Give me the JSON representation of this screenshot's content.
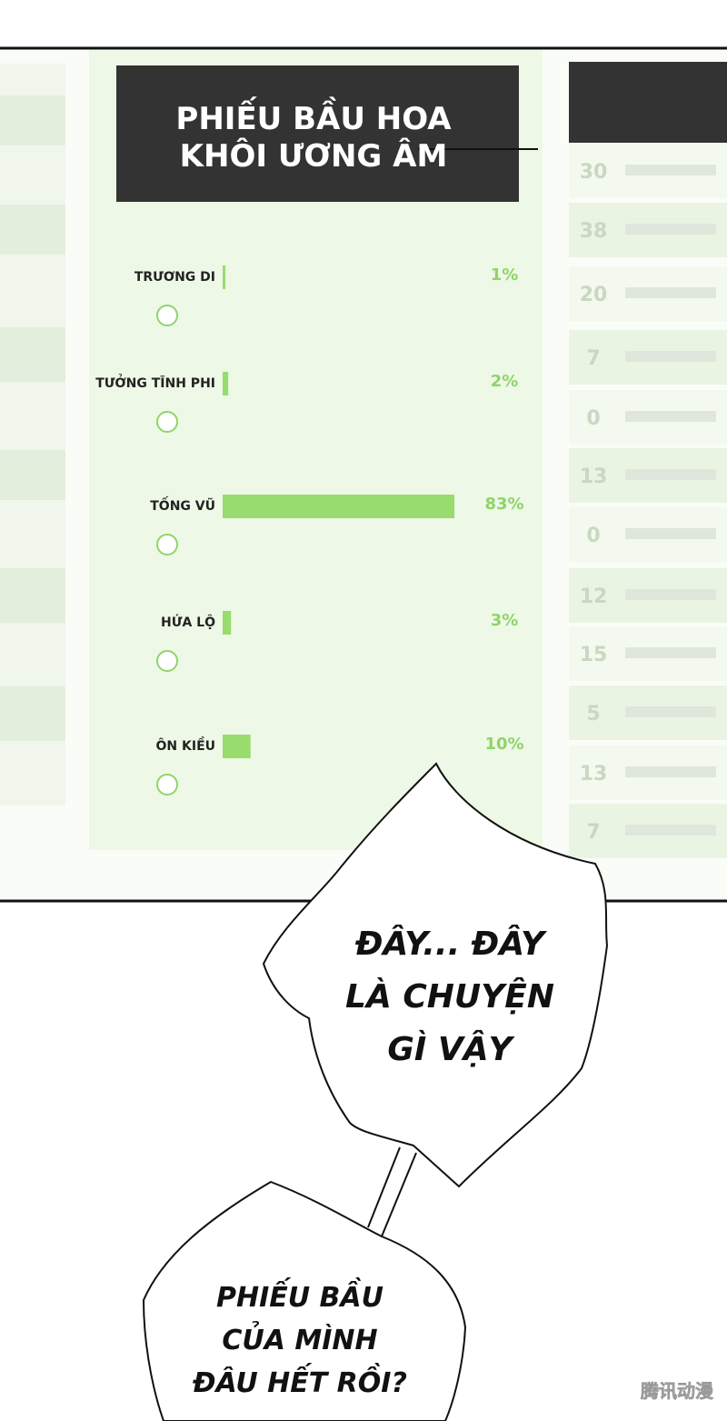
{
  "poll": {
    "title": [
      "PHIẾU BẦU HOA",
      "KHÔI ƯƠNG ÂM"
    ],
    "options": [
      {
        "name": "TRƯƠNG DI",
        "value": 1,
        "value_label": "1%"
      },
      {
        "name": "TƯỞNG TĨNH PHI",
        "value": 2,
        "value_label": "2%"
      },
      {
        "name": "TỐNG VŨ",
        "value": 83,
        "value_label": "83%"
      },
      {
        "name": "HỨA LỘ",
        "value": 3,
        "value_label": "3%"
      },
      {
        "name": "ÔN KIỀU",
        "value": 10,
        "value_label": "10%"
      }
    ]
  },
  "side_list": {
    "counts": [
      "30",
      "38",
      "20",
      "7",
      "0",
      "13",
      "0",
      "12",
      "15",
      "5",
      "13",
      "7"
    ]
  },
  "bubbles": [
    [
      "ĐÂY... ĐÂY",
      "LÀ CHUYỆN",
      "GÌ VẬY"
    ],
    [
      "PHIẾU BẦU",
      "CỦA MÌNH",
      "ĐÂU HẾT RỒI?"
    ]
  ],
  "watermark": "腾讯动漫"
}
